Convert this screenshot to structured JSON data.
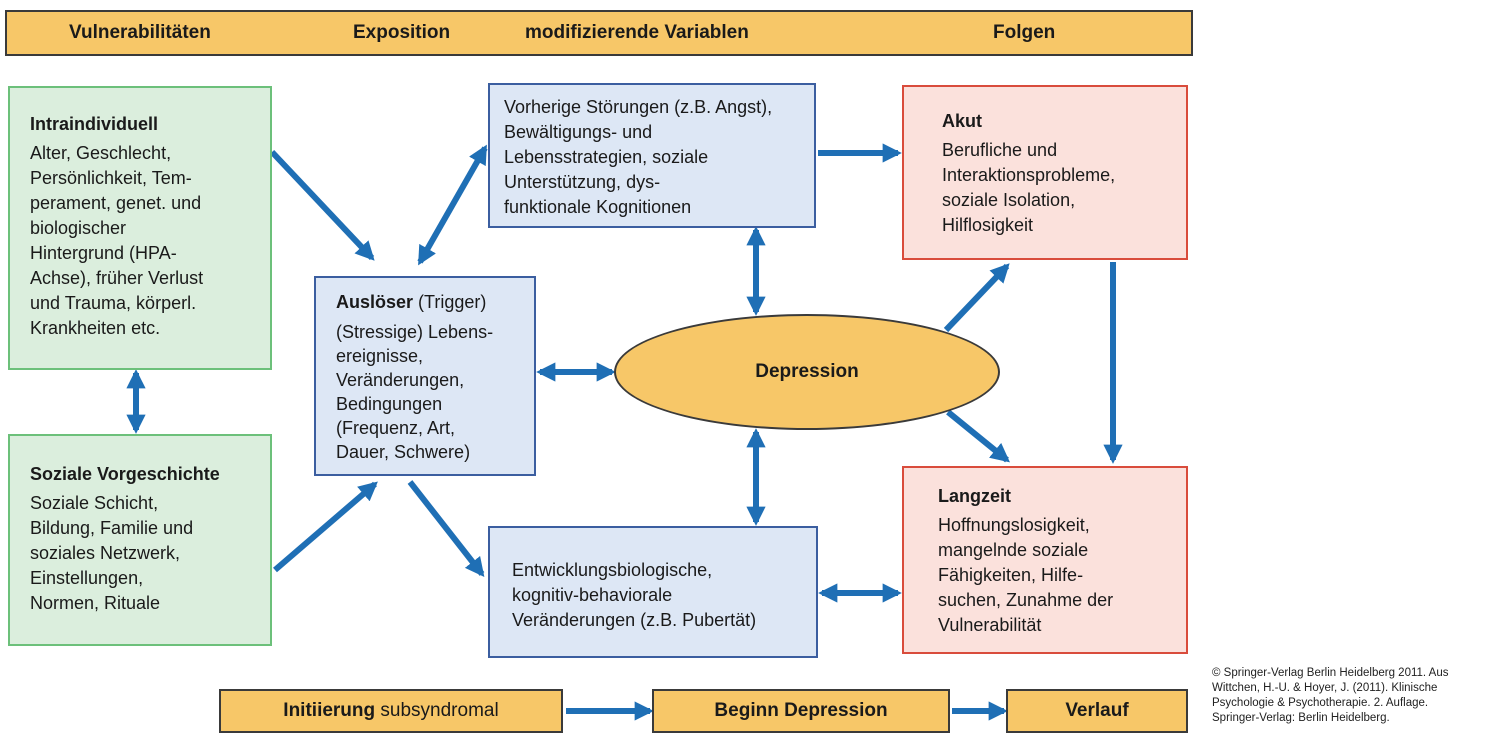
{
  "header": {
    "vulnerabilities": "Vulnerabilitäten",
    "exposition": "Exposition",
    "modifying": "modifizierende Variablen",
    "consequences": "Folgen"
  },
  "intraindividual": {
    "title": "Intraindividuell",
    "lines": [
      "Alter, Geschlecht,",
      "Persönlichkeit, Tem-",
      "perament, genet. und",
      "biologischer",
      "Hintergrund (HPA-",
      "Achse), früher Verlust",
      "und Trauma, körperl.",
      "Krankheiten etc."
    ]
  },
  "social_history": {
    "title": "Soziale Vorgeschichte",
    "lines": [
      "Soziale Schicht,",
      "Bildung, Familie und",
      "soziales Netzwerk,",
      "Einstellungen,",
      "Normen, Rituale"
    ]
  },
  "prior_disorders": {
    "lines": [
      "Vorherige Störungen (z.B. Angst),",
      "Bewältigungs- und",
      "Lebensstrategien, soziale",
      "Unterstützung, dys-",
      "funktionale Kognitionen"
    ]
  },
  "trigger": {
    "title": "Auslöser",
    "title_suffix": " (Trigger)",
    "lines": [
      "(Stressige) Lebens-",
      "ereignisse,",
      "Veränderungen,",
      "Bedingungen",
      "(Frequenz, Art,",
      "Dauer, Schwere)"
    ]
  },
  "depression": {
    "label": "Depression"
  },
  "developmental": {
    "lines": [
      "Entwicklungsbiologische,",
      "kognitiv-behaviorale",
      "Veränderungen (z.B. Pubertät)"
    ]
  },
  "acute": {
    "title": "Akut",
    "lines": [
      "Berufliche und",
      "Interaktionsprobleme,",
      "soziale Isolation,",
      "Hilflosigkeit"
    ]
  },
  "longterm": {
    "title": "Langzeit",
    "lines": [
      "Hoffnungslosigkeit,",
      "mangelnde soziale",
      "Fähigkeiten, Hilfe-",
      "suchen, Zunahme der",
      "Vulnerabilität"
    ]
  },
  "timeline": {
    "initiation_bold": "Initiierung",
    "initiation_rest": " subsyndromal",
    "onset": "Beginn Depression",
    "course": "Verlauf"
  },
  "credit": {
    "lines": [
      "© Springer-Verlag Berlin Heidelberg 2011. Aus",
      "Wittchen, H.-U. & Hoyer, J. (2011). Klinische",
      "Psychologie & Psychotherapie. 2. Auflage.",
      "Springer-Verlag: Berlin Heidelberg."
    ]
  },
  "colors": {
    "bar": "#f7c768",
    "green_fill": "#dbeedd",
    "green_border": "#6cc07a",
    "blue_fill": "#dde7f5",
    "blue_border": "#3b5ea0",
    "red_fill": "#fbe1dc",
    "red_border": "#d94c3c",
    "arrow": "#1f6fb5"
  }
}
